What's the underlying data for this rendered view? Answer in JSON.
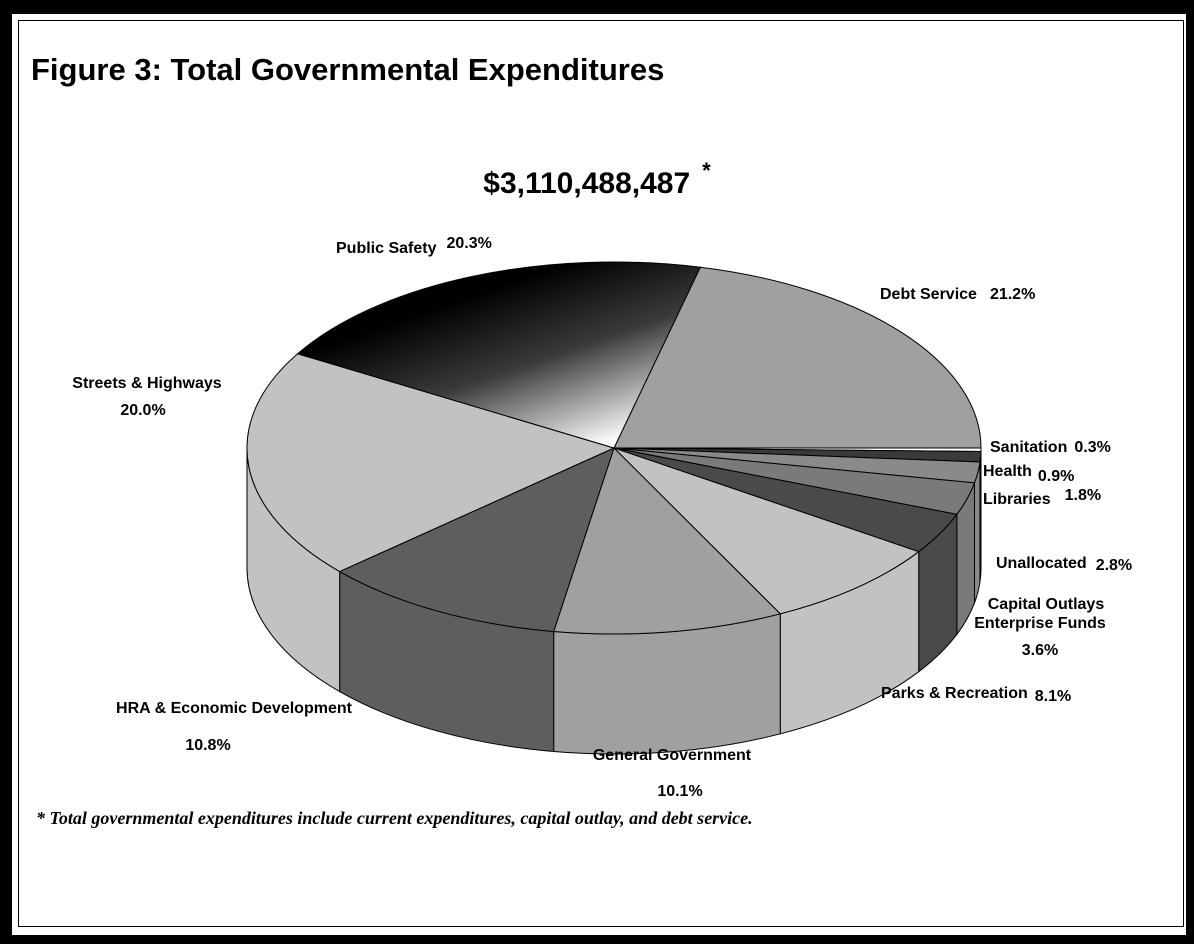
{
  "figure_title": "Figure 3:  Total Governmental Expenditures",
  "total_amount": "$3,110,488,487",
  "total_marker": "*",
  "footnote": "*  Total governmental expenditures include current expenditures, capital outlay, and debt service.",
  "chart_data": {
    "type": "pie",
    "three_d": true,
    "total": "$3,110,488,487",
    "slices": [
      {
        "name": "Debt Service",
        "label": "Debt Service",
        "pct_label": "21.2%",
        "value": 21.2,
        "color": "#a0a0a0"
      },
      {
        "name": "Sanitation",
        "label": "Sanitation",
        "pct_label": "0.3%",
        "value": 0.3,
        "color": "#ffffff"
      },
      {
        "name": "Health",
        "label": "Health",
        "pct_label": "0.9%",
        "value": 0.9,
        "color": "#3a3a3a"
      },
      {
        "name": "Libraries",
        "label": "Libraries",
        "pct_label": "1.8%",
        "value": 1.8,
        "color": "#8a8a8a"
      },
      {
        "name": "Unallocated",
        "label": "Unallocated",
        "pct_label": "2.8%",
        "value": 2.8,
        "color": "#7a7a7a"
      },
      {
        "name": "Capital Outlays Enterprise Funds",
        "label_lines": [
          "Capital Outlays",
          "Enterprise Funds"
        ],
        "pct_label": "3.6%",
        "value": 3.6,
        "color": "#4a4a4a"
      },
      {
        "name": "Parks & Recreation",
        "label": "Parks & Recreation",
        "pct_label": "8.1%",
        "value": 8.1,
        "color": "#c2c2c2"
      },
      {
        "name": "General Government",
        "label": "General Government",
        "pct_label": "10.1%",
        "value": 10.1,
        "color": "#a0a0a0"
      },
      {
        "name": "HRA & Economic Development",
        "label": "HRA & Economic Development",
        "pct_label": "10.8%",
        "value": 10.8,
        "color": "#5e5e5e"
      },
      {
        "name": "Streets & Highways",
        "label": "Streets & Highways",
        "pct_label": "20.0%",
        "value": 20.0,
        "color": "#c2c2c2"
      },
      {
        "name": "Public Safety",
        "label": "Public Safety",
        "pct_label": "20.3%",
        "value": 20.3,
        "color": "gradient-black-to-white"
      }
    ]
  }
}
